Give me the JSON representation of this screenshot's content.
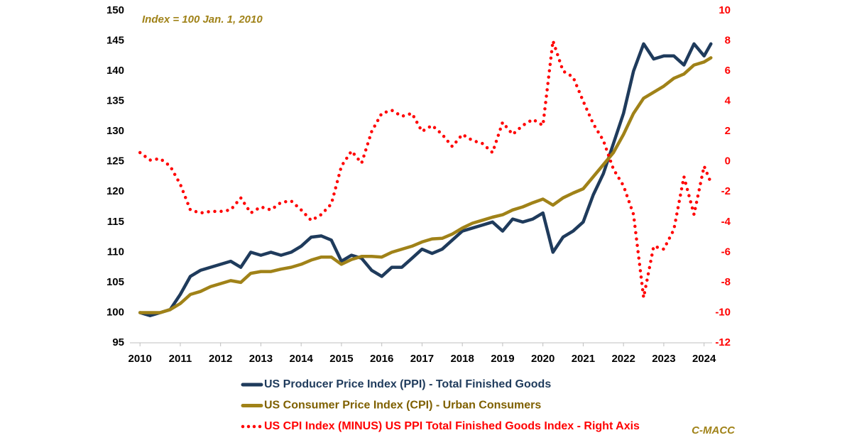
{
  "chart_data": {
    "type": "line",
    "annotation": "Index = 100 Jan. 1, 2010",
    "credit": "C-MACC",
    "x": [
      2010,
      2010.25,
      2010.5,
      2010.75,
      2011,
      2011.25,
      2011.5,
      2011.75,
      2012,
      2012.25,
      2012.5,
      2012.75,
      2013,
      2013.25,
      2013.5,
      2013.75,
      2014,
      2014.25,
      2014.5,
      2014.75,
      2015,
      2015.25,
      2015.5,
      2015.75,
      2016,
      2016.25,
      2016.5,
      2016.75,
      2017,
      2017.25,
      2017.5,
      2017.75,
      2018,
      2018.25,
      2018.5,
      2018.75,
      2019,
      2019.25,
      2019.5,
      2019.75,
      2020,
      2020.25,
      2020.5,
      2020.75,
      2021,
      2021.25,
      2021.5,
      2021.75,
      2022,
      2022.25,
      2022.5,
      2022.75,
      2023,
      2023.25,
      2023.5,
      2023.75,
      2024,
      2024.17
    ],
    "series": [
      {
        "name": "US Producer Price Index (PPI) - Total Finished Goods",
        "color": "#1f3b5c",
        "style": "solid",
        "values": [
          100,
          99.5,
          100,
          100.5,
          103,
          106,
          107,
          107.5,
          108,
          108.5,
          107.5,
          110,
          109.5,
          110,
          109.5,
          110,
          111,
          112.5,
          112.7,
          112,
          108.5,
          109.5,
          109,
          107,
          106,
          107.5,
          107.5,
          109,
          110.5,
          109.8,
          110.5,
          112,
          113.5,
          114,
          114.5,
          115,
          113.5,
          115.5,
          115,
          115.5,
          116.5,
          110,
          112.5,
          113.5,
          115,
          119.5,
          123,
          128,
          133,
          140,
          144.5,
          142,
          142.5,
          142.5,
          141,
          144.5,
          142.5,
          144.5
        ]
      },
      {
        "name": "US Consumer Price Index (CPI) - Urban Consumers",
        "color": "#a08218",
        "style": "solid",
        "values": [
          100,
          100,
          100,
          100.5,
          101.5,
          103,
          103.5,
          104.3,
          104.8,
          105.3,
          105,
          106.5,
          106.8,
          106.8,
          107.2,
          107.5,
          108,
          108.7,
          109.2,
          109.2,
          108,
          108.8,
          109.3,
          109.3,
          109.2,
          110,
          110.5,
          111,
          111.7,
          112.2,
          112.3,
          113,
          114,
          114.8,
          115.3,
          115.8,
          116.2,
          117,
          117.5,
          118.2,
          118.8,
          117.8,
          119,
          119.8,
          120.5,
          122.5,
          124.5,
          126.5,
          129.5,
          133,
          135.5,
          136.5,
          137.5,
          138.8,
          139.5,
          141,
          141.5,
          142.2
        ]
      },
      {
        "name": "US CPI Index (MINUS) US PPI Total Finished Goods Index - Right Axis",
        "color": "#ff0000",
        "style": "dotted",
        "axis": "y2",
        "values": [
          0.6,
          0.1,
          0.2,
          -0.3,
          -1.5,
          -3.2,
          -3.4,
          -3.3,
          -3.3,
          -3.2,
          -2.4,
          -3.4,
          -3.0,
          -3.2,
          -2.7,
          -2.6,
          -3.2,
          -3.9,
          -3.5,
          -2.8,
          -0.3,
          0.7,
          -0.1,
          2.0,
          3.2,
          3.4,
          3.0,
          3.2,
          2.0,
          2.4,
          1.8,
          1.0,
          1.8,
          1.4,
          1.2,
          0.6,
          2.6,
          1.8,
          2.4,
          2.8,
          2.4,
          8,
          6,
          5.6,
          4.0,
          2.5,
          1.4,
          -0.5,
          -1.6,
          -3.5,
          -9.0,
          -5.6,
          -5.8,
          -4.5,
          -1,
          -3.5,
          -0.3,
          -1.4
        ]
      }
    ],
    "xlim": [
      2009.75,
      2024.2
    ],
    "xticks": [
      2010,
      2011,
      2012,
      2013,
      2014,
      2015,
      2016,
      2017,
      2018,
      2019,
      2020,
      2021,
      2022,
      2023,
      2024
    ],
    "ylim": [
      95,
      150
    ],
    "yticks": [
      95,
      100,
      105,
      110,
      115,
      120,
      125,
      130,
      135,
      140,
      145,
      150
    ],
    "y2lim": [
      -12,
      10
    ],
    "y2ticks": [
      -12,
      -10,
      -8,
      -6,
      -4,
      -2,
      0,
      2,
      4,
      6,
      8,
      10
    ],
    "y2color": "#ff0000"
  }
}
